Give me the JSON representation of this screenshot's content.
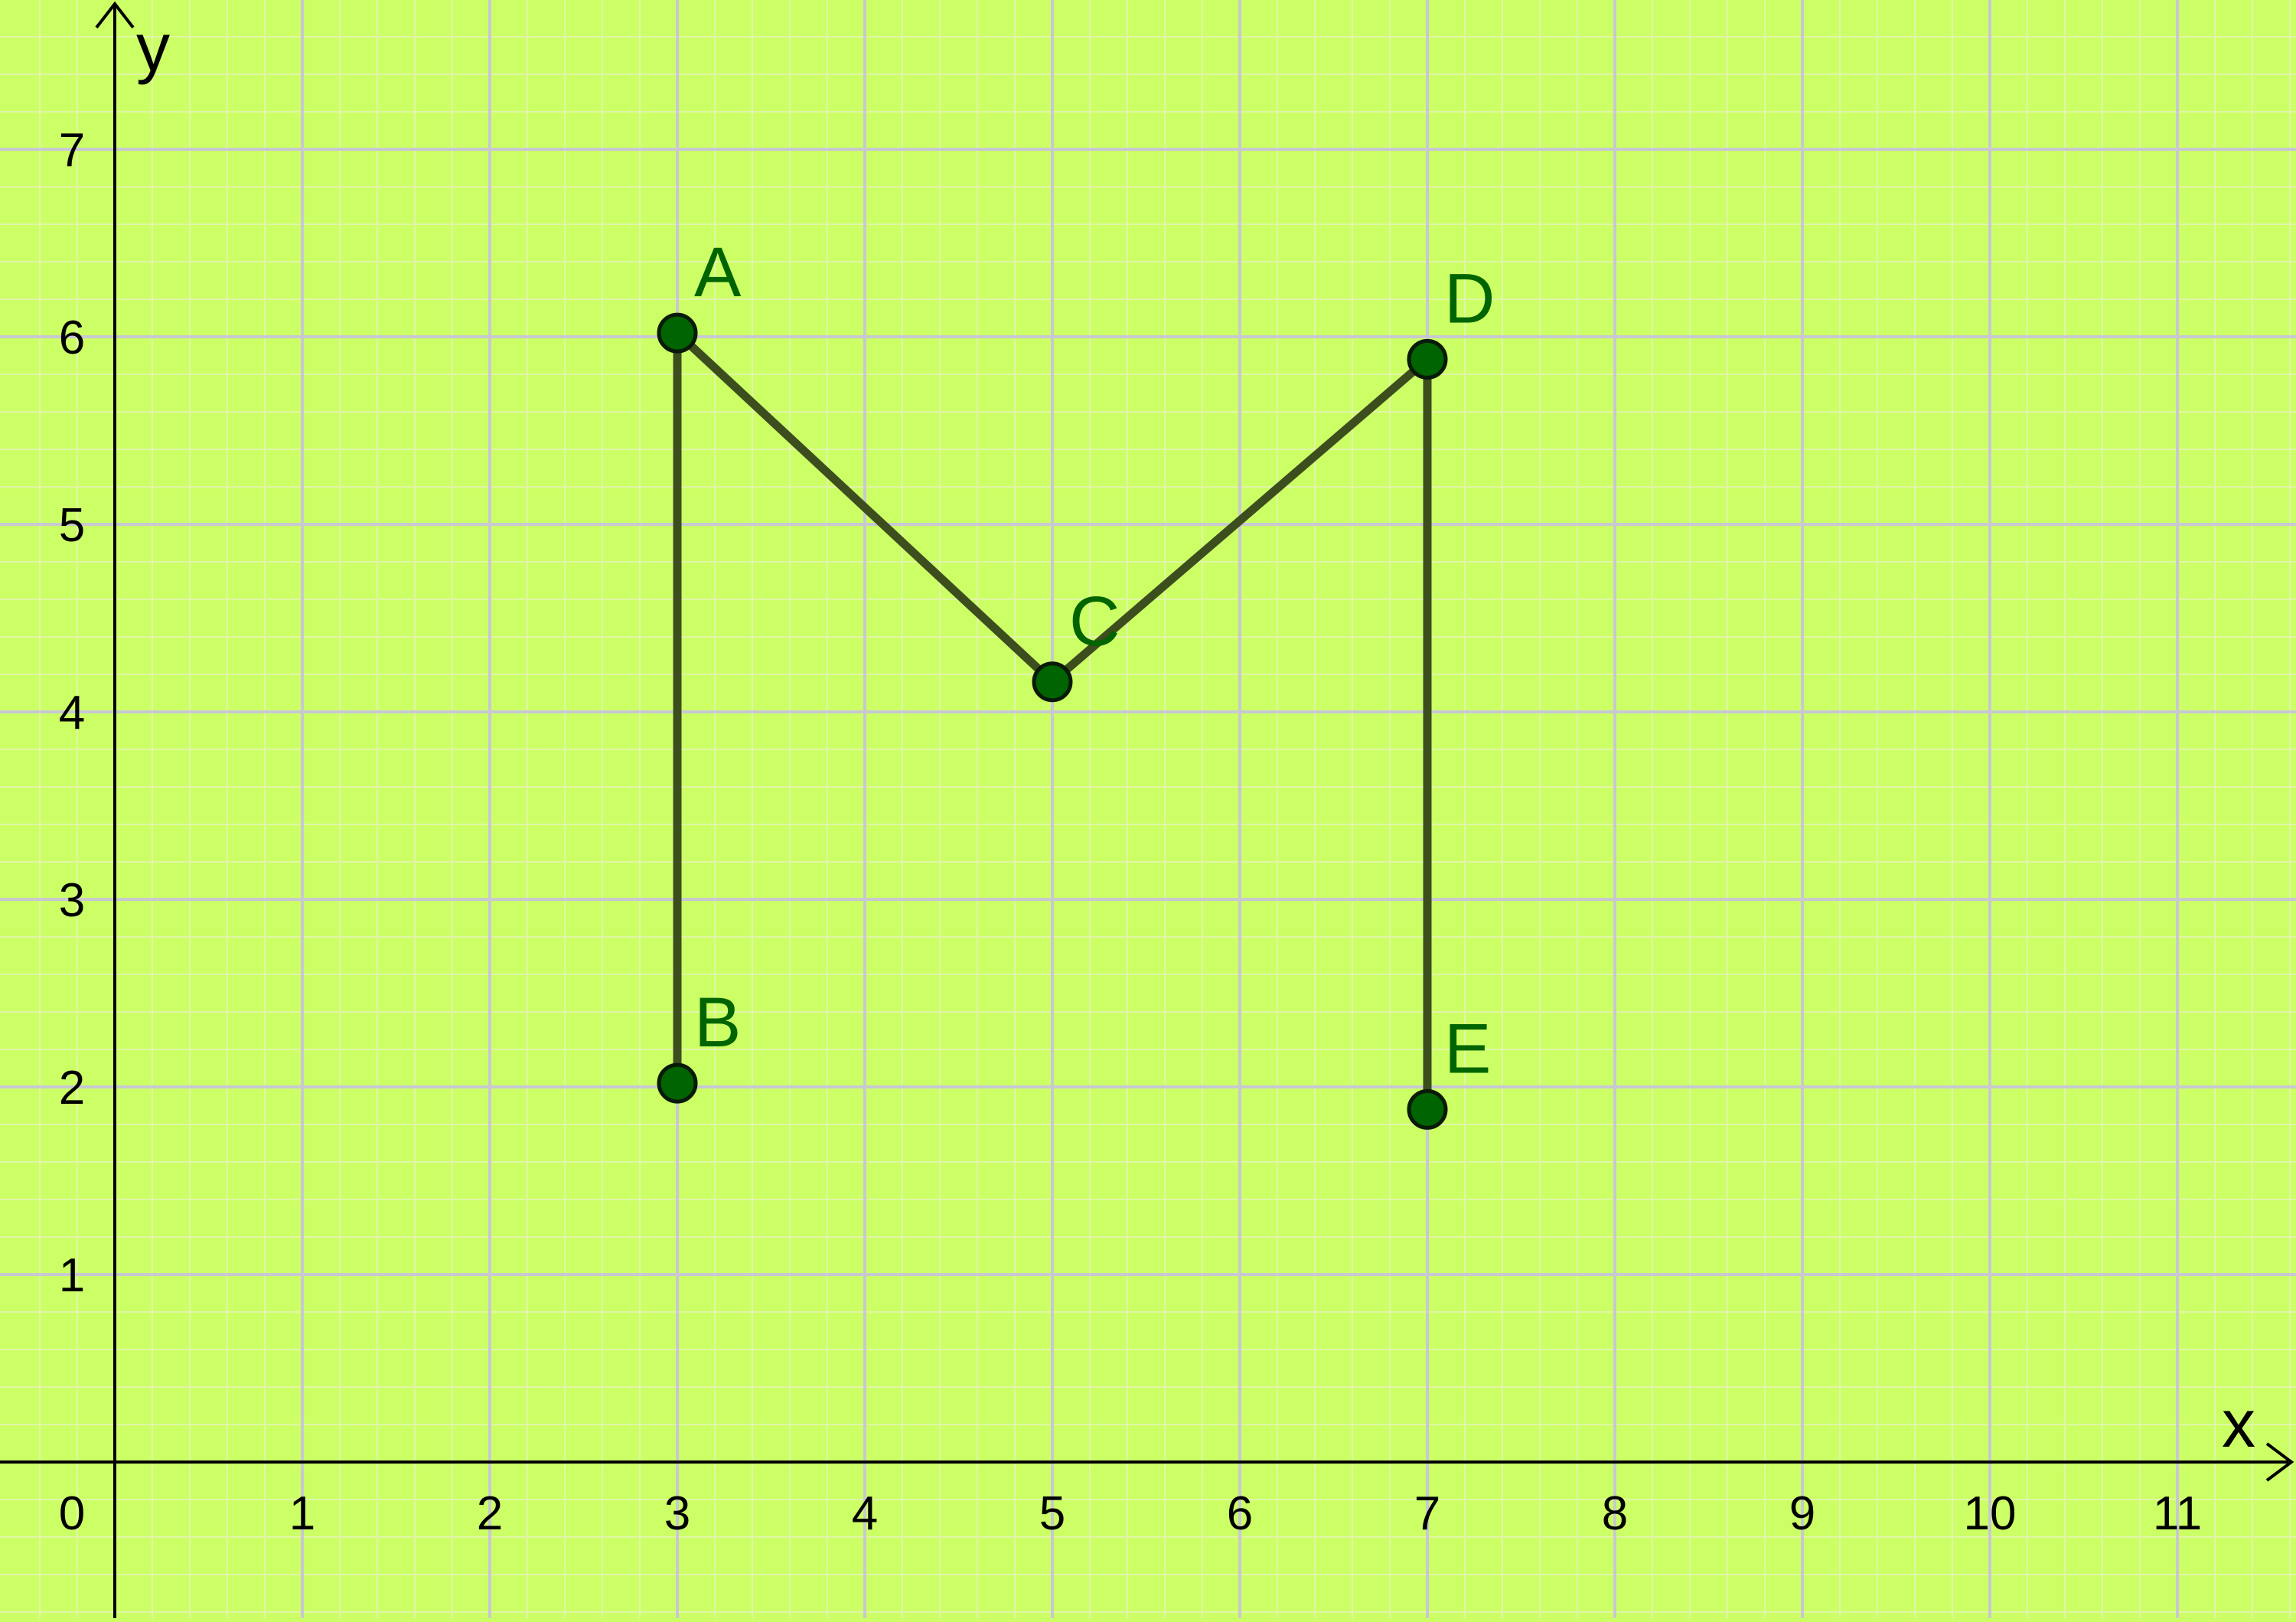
{
  "chart_data": {
    "type": "scatter",
    "xlim": [
      -0.6,
      11.65
    ],
    "ylim": [
      -0.83,
      7.8
    ],
    "x_ticks": [
      "0",
      "1",
      "2",
      "3",
      "4",
      "5",
      "6",
      "7",
      "8",
      "9",
      "10",
      "11"
    ],
    "y_ticks": [
      "1",
      "2",
      "3",
      "4",
      "5",
      "6",
      "7"
    ],
    "x_axis_label": "x",
    "y_axis_label": "y",
    "grid": {
      "major": true,
      "minor_per_unit": 5
    },
    "colors": {
      "background": "#ccff66",
      "major_grid": "#c8c8d2",
      "minor_grid": "#e0f5a8",
      "axis": "#000000",
      "point_fill": "#006400",
      "point_stroke": "#0a1a0a",
      "segment": "#3c4d1e",
      "label": "#006400"
    },
    "points": [
      {
        "name": "A",
        "x": 3,
        "y": 6.02
      },
      {
        "name": "B",
        "x": 3,
        "y": 2.02
      },
      {
        "name": "C",
        "x": 5,
        "y": 4.16
      },
      {
        "name": "D",
        "x": 7,
        "y": 5.88
      },
      {
        "name": "E",
        "x": 7,
        "y": 1.88
      }
    ],
    "segments": [
      {
        "from": "B",
        "to": "A"
      },
      {
        "from": "A",
        "to": "C"
      },
      {
        "from": "C",
        "to": "D"
      },
      {
        "from": "D",
        "to": "E"
      }
    ]
  }
}
